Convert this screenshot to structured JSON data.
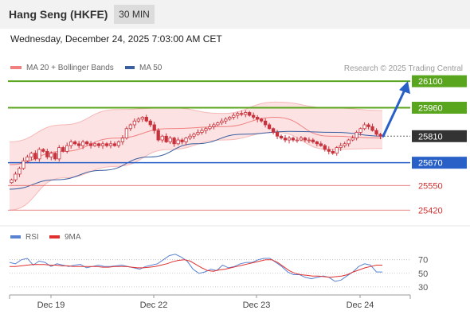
{
  "header": {
    "title": "Hang Seng (HKFE)",
    "timeframe": "30 MIN"
  },
  "datetime": "Wednesday, December 24, 2025 7:03:00 AM CET",
  "watermark": "Research © 2025 Trading Central",
  "colors": {
    "bollinger": "#f08080",
    "ma50": "#3a5fa0",
    "green": "#5aa51e",
    "blue": "#2860c8",
    "red": "#e05a5a",
    "candle": "#c8323c",
    "price_tag": "#333333",
    "rsi": "#5a82d2",
    "rsi_ma": "#e03030"
  },
  "chart_data": [
    {
      "type": "candlestick",
      "legend": [
        {
          "label": "MA 20 + Bollinger Bands",
          "color": "#f08080"
        },
        {
          "label": "MA 50",
          "color": "#3a5fa0"
        }
      ],
      "ylim": [
        25375,
        26130
      ],
      "current_price": 25810,
      "levels": [
        {
          "value": 26100,
          "label": "26100",
          "kind": "resistance"
        },
        {
          "value": 25960,
          "label": "25960",
          "kind": "resistance"
        },
        {
          "value": 25810,
          "label": "25810",
          "kind": "current"
        },
        {
          "value": 25670,
          "label": "25670",
          "kind": "pivot"
        },
        {
          "value": 25550,
          "label": "25550",
          "kind": "support"
        },
        {
          "value": 25420,
          "label": "25420",
          "kind": "support"
        }
      ],
      "x_ticks": [
        "Dec 19",
        "Dec 22",
        "Dec 23",
        "Dec 24"
      ],
      "price_path": [
        25580,
        25610,
        25640,
        25680,
        25700,
        25720,
        25690,
        25740,
        25730,
        25700,
        25720,
        25690,
        25750,
        25730,
        25760,
        25780,
        25770,
        25760,
        25780,
        25770,
        25760,
        25770,
        25760,
        25770,
        25760,
        25770,
        25760,
        25780,
        25800,
        25850,
        25870,
        25890,
        25900,
        25910,
        25890,
        25870,
        25840,
        25790,
        25810,
        25780,
        25800,
        25770,
        25790,
        25780,
        25800,
        25810,
        25820,
        25830,
        25840,
        25850,
        25860,
        25870,
        25880,
        25890,
        25900,
        25910,
        25920,
        25930,
        25925,
        25935,
        25920,
        25910,
        25900,
        25890,
        25870,
        25850,
        25830,
        25810,
        25800,
        25790,
        25800,
        25790,
        25790,
        25800,
        25790,
        25790,
        25780,
        25770,
        25760,
        25740,
        25730,
        25720,
        25750,
        25760,
        25770,
        25790,
        25800,
        25830,
        25850,
        25870,
        25860,
        25840,
        25820,
        25810
      ],
      "projection": {
        "from": 25810,
        "to": 26100
      },
      "bollinger": {
        "upper": [
          25780,
          25870,
          25950,
          25960,
          25930,
          25990,
          25960,
          25945
        ],
        "middle": [
          25660,
          25730,
          25800,
          25850,
          25860,
          25910,
          25810,
          25800
        ],
        "lower": [
          25420,
          25590,
          25650,
          25740,
          25790,
          25830,
          25740,
          25745
        ]
      },
      "ma50": [
        25530,
        25580,
        25630,
        25700,
        25770,
        25820,
        25835,
        25830,
        25810
      ]
    },
    {
      "type": "line",
      "title": "RSI",
      "legend": [
        {
          "label": "RSI",
          "color": "#5a82d2"
        },
        {
          "label": "9MA",
          "color": "#e03030"
        }
      ],
      "ylim": [
        24,
        86
      ],
      "y_ticks": [
        70,
        50,
        30
      ],
      "rsi": [
        66,
        64,
        70,
        72,
        62,
        68,
        66,
        60,
        64,
        62,
        60,
        62,
        63,
        58,
        60,
        62,
        60,
        60,
        61,
        62,
        60,
        58,
        56,
        60,
        62,
        64,
        70,
        76,
        78,
        74,
        68,
        56,
        50,
        52,
        56,
        54,
        62,
        58,
        60,
        64,
        66,
        66,
        70,
        72,
        72,
        66,
        60,
        52,
        48,
        48,
        44,
        42,
        44,
        46,
        44,
        38,
        40,
        46,
        52,
        60,
        64,
        62,
        52,
        52
      ],
      "rsi_ma": [
        60,
        60,
        61,
        62,
        63,
        63,
        63,
        62,
        62,
        61,
        61,
        60,
        60,
        60,
        60,
        60,
        59,
        59,
        60,
        60,
        60,
        59,
        58,
        58,
        59,
        60,
        62,
        64,
        67,
        69,
        70,
        68,
        63,
        58,
        54,
        53,
        55,
        56,
        58,
        60,
        62,
        64,
        66,
        68,
        70,
        70,
        66,
        60,
        54,
        50,
        48,
        47,
        46,
        46,
        45,
        44,
        45,
        46,
        48,
        52,
        55,
        58,
        60,
        62,
        62
      ]
    }
  ]
}
